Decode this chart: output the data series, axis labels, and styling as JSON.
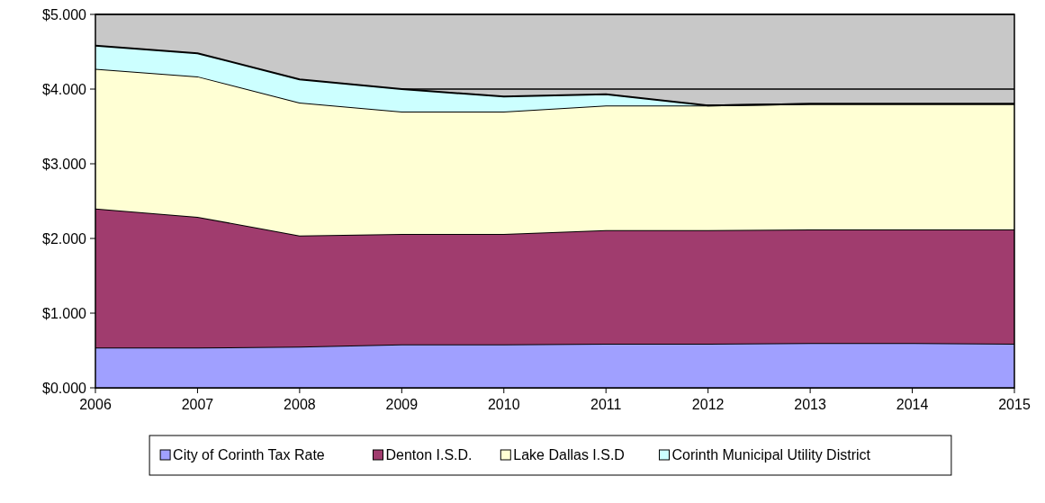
{
  "chart_data": {
    "type": "area",
    "stacked": true,
    "x": [
      2006,
      2007,
      2008,
      2009,
      2010,
      2011,
      2012,
      2013,
      2014,
      2015
    ],
    "series": [
      {
        "name": "City of Corinth Tax Rate",
        "color": "#a0a0ff",
        "values": [
          0.54,
          0.54,
          0.55,
          0.58,
          0.58,
          0.59,
          0.59,
          0.6,
          0.6,
          0.59
        ]
      },
      {
        "name": "Denton I.S.D.",
        "color": "#a03c6e",
        "values": [
          1.86,
          1.75,
          1.49,
          1.48,
          1.48,
          1.52,
          1.52,
          1.52,
          1.52,
          1.53
        ]
      },
      {
        "name": "Lake Dallas I.S.D",
        "color": "#ffffd4",
        "values": [
          1.87,
          1.88,
          1.78,
          1.64,
          1.64,
          1.67,
          1.67,
          1.68,
          1.68,
          1.68
        ]
      },
      {
        "name": "Corinth Municipal Utility District",
        "color": "#ccffff",
        "values": [
          0.31,
          0.31,
          0.31,
          0.3,
          0.2,
          0.15,
          0,
          0,
          0,
          0
        ]
      }
    ],
    "xlim": [
      2006,
      2015
    ],
    "xticks": [
      2006,
      2007,
      2008,
      2009,
      2010,
      2011,
      2012,
      2013,
      2014,
      2015
    ],
    "ylim": [
      0,
      5
    ],
    "yticks": [
      {
        "value": 0,
        "label": "$0.000"
      },
      {
        "value": 1,
        "label": "$1.000"
      },
      {
        "value": 2,
        "label": "$2.000"
      },
      {
        "value": 3,
        "label": "$3.000"
      },
      {
        "value": 4,
        "label": "$4.000"
      },
      {
        "value": 5,
        "label": "$5.000"
      }
    ],
    "grid": "y",
    "legend": "bottom"
  }
}
